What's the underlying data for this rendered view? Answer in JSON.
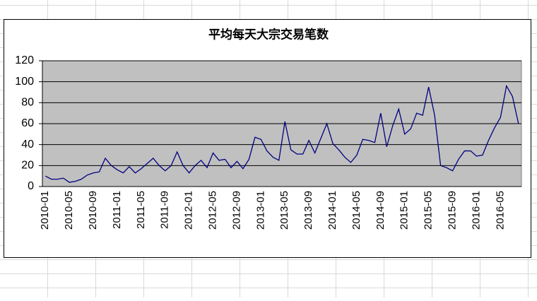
{
  "chart_data": {
    "type": "line",
    "title": "平均每天大宗交易笔数",
    "categories": [
      "2010-01",
      null,
      null,
      null,
      "2010-05",
      null,
      null,
      null,
      "2010-09",
      null,
      null,
      null,
      "2011-01",
      null,
      null,
      null,
      "2011-05",
      null,
      null,
      null,
      "2011-09",
      null,
      null,
      null,
      "2012-01",
      null,
      null,
      null,
      "2012-05",
      null,
      null,
      null,
      "2012-09",
      null,
      null,
      null,
      "2013-01",
      null,
      null,
      null,
      "2013-05",
      null,
      null,
      null,
      "2013-09",
      null,
      null,
      null,
      "2014-01",
      null,
      null,
      null,
      "2014-05",
      null,
      null,
      null,
      "2014-09",
      null,
      null,
      null,
      "2015-01",
      null,
      null,
      null,
      "2015-05",
      null,
      null,
      null,
      "2015-09",
      null,
      null,
      null,
      "2016-01",
      null,
      null,
      null,
      "2016-05",
      null,
      null,
      null
    ],
    "values": [
      10,
      7,
      7,
      8,
      4,
      5,
      7,
      11,
      13,
      14,
      27,
      20,
      16,
      13,
      19,
      13,
      17,
      22,
      27,
      20,
      15,
      20,
      33,
      20,
      13,
      20,
      25,
      18,
      32,
      25,
      26,
      18,
      24,
      17,
      26,
      47,
      45,
      34,
      28,
      25,
      62,
      35,
      31,
      31,
      44,
      32,
      46,
      60,
      41,
      35,
      28,
      23,
      30,
      45,
      44,
      42,
      70,
      38,
      58,
      74,
      50,
      55,
      70,
      68,
      95,
      68,
      20,
      18,
      15,
      26,
      34,
      34,
      29,
      30,
      44,
      56,
      66,
      96,
      86,
      60
    ],
    "color": "#000080",
    "ylim": [
      0,
      120
    ],
    "yticks": [
      0,
      20,
      40,
      60,
      80,
      100,
      120
    ],
    "grid": true
  }
}
